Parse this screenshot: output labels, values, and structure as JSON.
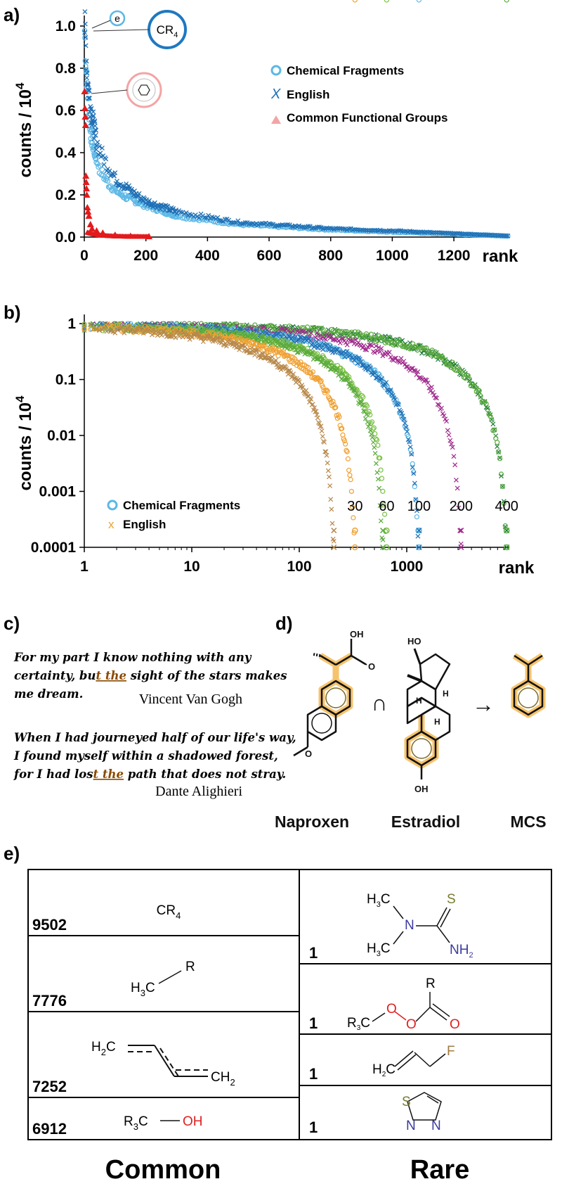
{
  "colors": {
    "chem": "#5cb8e6",
    "english": "#1f6fb5",
    "functional": "#e31a1c",
    "naproxen_highlight": "#f6c36b",
    "orange": "#f0a030",
    "brown": "#b8884a",
    "lightgreen": "#7ac143",
    "green": "#5aaa3c",
    "purple": "#a0288c",
    "darkgreen": "#1d7a3a",
    "nitrogen": "#3a3aa0",
    "oxygen": "#e02020",
    "sulfur": "#7a7a30",
    "fluorine": "#a07a40"
  },
  "panel_labels": {
    "a": "a)",
    "b": "b)",
    "c": "c)",
    "d": "d)",
    "e": "e)"
  },
  "chart_data": [
    {
      "type": "scatter",
      "panel": "a",
      "ylabel_main": "counts / 10",
      "ylabel_exp": "4",
      "xlabel": "rank",
      "xlim": [
        0,
        1380
      ],
      "ylim": [
        0,
        1.0
      ],
      "xticks": [
        "0",
        "200",
        "400",
        "600",
        "800",
        "1000",
        "1200"
      ],
      "xtick_values": [
        0,
        200,
        400,
        600,
        800,
        1000,
        1200
      ],
      "yticks": [
        "0.0",
        "0.2",
        "0.4",
        "0.6",
        "0.8",
        "1.0"
      ],
      "ytick_values": [
        0,
        0.2,
        0.4,
        0.6,
        0.8,
        1.0
      ],
      "legend": [
        {
          "name": "Chemical Fragments",
          "marker": "circle"
        },
        {
          "name": "English",
          "marker": "x"
        },
        {
          "name": "Common Functional Groups",
          "marker": "triangle"
        }
      ],
      "legend_position": "top-right",
      "annotations": [
        "e",
        "CR4",
        "benzene-ring"
      ],
      "functional_points": [
        [
          1,
          0.69
        ],
        [
          2,
          0.61
        ],
        [
          3,
          0.57
        ],
        [
          4,
          0.53
        ],
        [
          5,
          0.29
        ],
        [
          6,
          0.26
        ],
        [
          7,
          0.23
        ],
        [
          8,
          0.2
        ],
        [
          10,
          0.14
        ],
        [
          12,
          0.12
        ],
        [
          15,
          0.1
        ],
        [
          20,
          0.06
        ],
        [
          25,
          0.04
        ],
        [
          40,
          0.03
        ],
        [
          60,
          0.02
        ],
        [
          100,
          0.01
        ],
        [
          150,
          0.005
        ],
        [
          210,
          0.003
        ]
      ],
      "chem_curve": [
        [
          1,
          0.98
        ],
        [
          5,
          0.8
        ],
        [
          10,
          0.7
        ],
        [
          20,
          0.5
        ],
        [
          30,
          0.42
        ],
        [
          50,
          0.32
        ],
        [
          80,
          0.25
        ],
        [
          120,
          0.2
        ],
        [
          200,
          0.15
        ],
        [
          300,
          0.1
        ],
        [
          500,
          0.06
        ],
        [
          800,
          0.035
        ],
        [
          1000,
          0.025
        ],
        [
          1380,
          0.005
        ]
      ],
      "english_curve": [
        [
          1,
          1.0
        ],
        [
          5,
          0.9
        ],
        [
          10,
          0.75
        ],
        [
          20,
          0.62
        ],
        [
          40,
          0.45
        ],
        [
          60,
          0.38
        ],
        [
          100,
          0.28
        ],
        [
          150,
          0.22
        ],
        [
          200,
          0.17
        ],
        [
          300,
          0.12
        ],
        [
          500,
          0.07
        ],
        [
          800,
          0.04
        ],
        [
          1000,
          0.03
        ],
        [
          1380,
          0.005
        ]
      ]
    },
    {
      "type": "scatter",
      "panel": "b",
      "log_x": true,
      "log_y": true,
      "ylabel_main": "counts / 10",
      "ylabel_exp": "4",
      "xlabel": "rank",
      "xlim": [
        1,
        9000
      ],
      "ylim": [
        0.0001,
        1
      ],
      "xticks": [
        "1",
        "10",
        "100",
        "1000"
      ],
      "xtick_values": [
        1,
        10,
        100,
        1000
      ],
      "yticks": [
        "1",
        "0.1",
        "0.01",
        "0.001",
        "0.0001"
      ],
      "ytick_values": [
        1,
        0.1,
        0.01,
        0.001,
        0.0001
      ],
      "legend": [
        {
          "name": "Chemical Fragments",
          "marker": "circle"
        },
        {
          "name": "English",
          "marker": "x"
        }
      ],
      "legend_position": "bottom-left",
      "series": [
        {
          "name": "30",
          "color_key": "orange",
          "tail_x": 330
        },
        {
          "name": "60",
          "color_key": "lightgreen",
          "tail_x": 650
        },
        {
          "name": "100",
          "color_key": "chem",
          "tail_x": 1300
        },
        {
          "name": "200",
          "color_key": "purple",
          "tail_x": 3200
        },
        {
          "name": "400",
          "color_key": "darkgreen",
          "tail_x": 8500
        }
      ]
    }
  ],
  "panel_c": {
    "quote1_lines": [
      "For my part I know nothing with any",
      "certainty, bu",
      "t the",
      " sight of the stars makes",
      "me dream."
    ],
    "author1": "Vincent Van Gogh",
    "quote2_lines": [
      "When I had journeyed half of our life's way,",
      "I found myself within a shadowed forest,",
      "for I had los",
      "t the",
      " path that does not stray."
    ],
    "author2": "Dante Alighieri"
  },
  "panel_d": {
    "naproxen": "Naproxen",
    "estradiol": "Estradiol",
    "mcs": "MCS",
    "intersect": "∩",
    "arrow": "→",
    "atoms": {
      "oh": "OH",
      "o": "O",
      "ho": "HO",
      "h": "H"
    }
  },
  "panel_e": {
    "common_label": "Common",
    "rare_label": "Rare",
    "common": [
      {
        "count": "9502",
        "formula": "CR",
        "sub": "4"
      },
      {
        "count": "7776",
        "h3": "H",
        "sub": "3",
        "c": "C",
        "r": "R"
      },
      {
        "count": "7252",
        "h2c": "H",
        "h2c_sub": "2",
        "h2c_c": "C",
        "ch2": "CH",
        "ch2_sub": "2"
      },
      {
        "count": "6912",
        "r3c": "R",
        "r3c_sub": "3",
        "r3c_c": "C",
        "oh": "OH"
      }
    ],
    "rare": [
      {
        "count": "1",
        "h3c_a": "H",
        "sub": "3",
        "c": "C",
        "n": "N",
        "s": "S",
        "nh2": "NH",
        "nh2_sub": "2"
      },
      {
        "count": "1",
        "r": "R",
        "o": "O",
        "r3c": "R",
        "r3c_sub": "3",
        "r3c_c": "C"
      },
      {
        "count": "1",
        "h2c": "H",
        "h2c_sub": "2",
        "h2c_c": "C",
        "f": "F"
      },
      {
        "count": "1",
        "s": "S",
        "n": "N"
      }
    ]
  }
}
